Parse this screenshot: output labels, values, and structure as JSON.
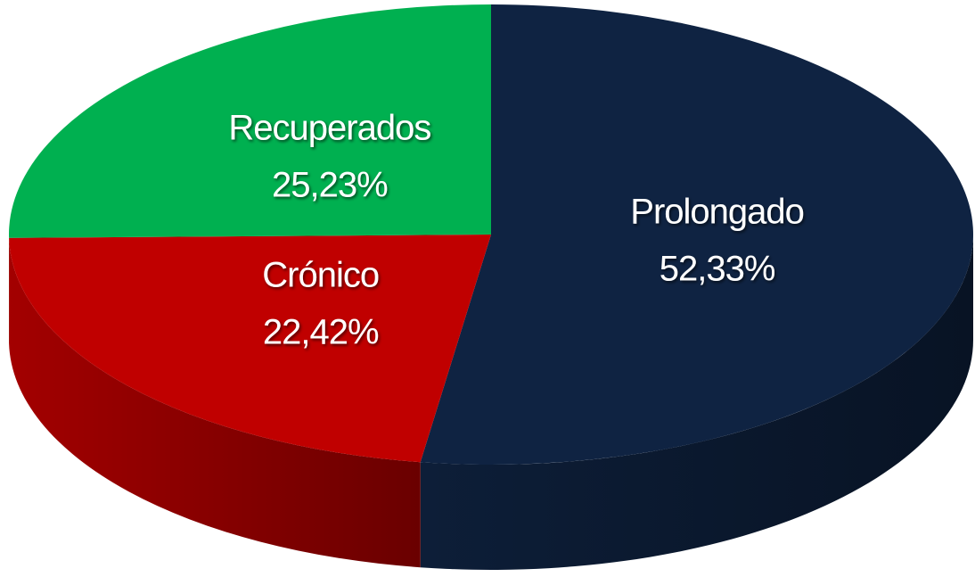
{
  "chart_data": {
    "type": "pie",
    "categories": [
      "Prolongado",
      "Crónico",
      "Recuperados"
    ],
    "values": [
      52.33,
      22.42,
      25.23
    ],
    "value_labels": [
      "52,33%",
      "22,42%",
      "25,23%"
    ],
    "colors": [
      "#0f2342",
      "#c00000",
      "#00b050"
    ]
  }
}
